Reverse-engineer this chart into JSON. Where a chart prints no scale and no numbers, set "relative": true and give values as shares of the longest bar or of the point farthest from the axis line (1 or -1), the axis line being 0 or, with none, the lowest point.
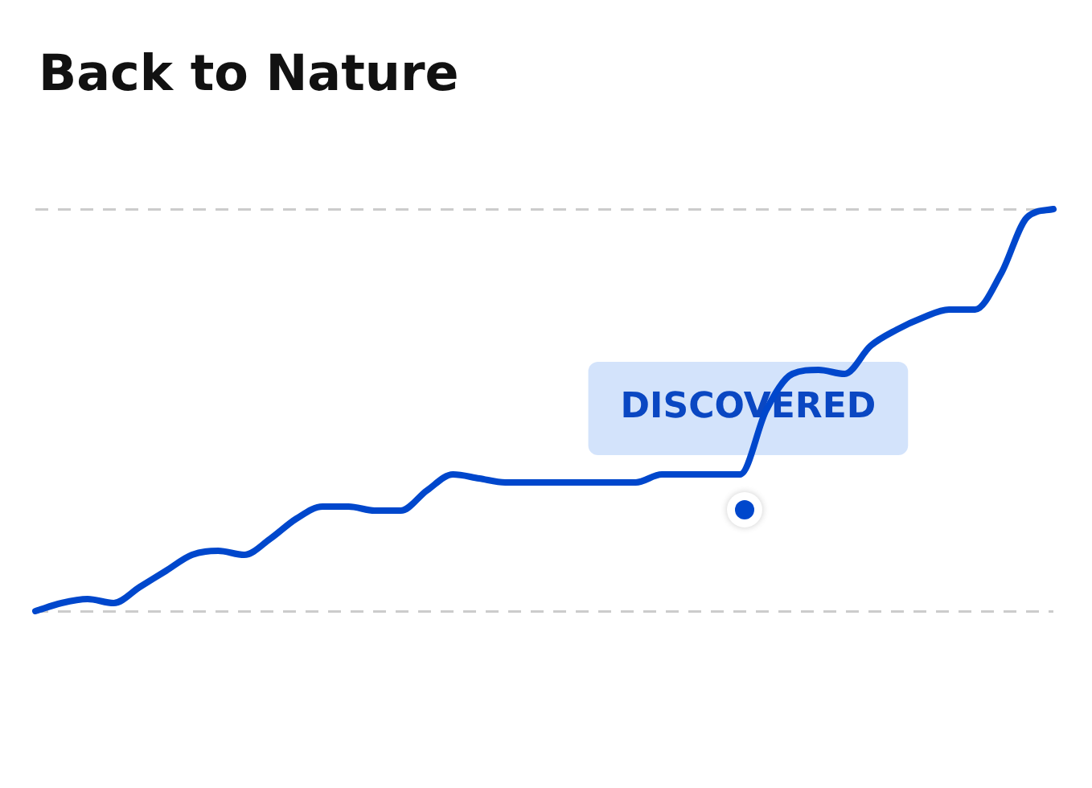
{
  "chart_data": {
    "type": "line",
    "title": "Back to Nature",
    "relative": true,
    "grid": "y",
    "legend": false,
    "marker": "none",
    "line_style": "solid",
    "categories": [
      null,
      null,
      null,
      null,
      null,
      null,
      null,
      null,
      null,
      null,
      null,
      null,
      null,
      null,
      null,
      null,
      null,
      null,
      null,
      null,
      null,
      null,
      null,
      null,
      null,
      null,
      null,
      null,
      null,
      null,
      null,
      null,
      null,
      null,
      null,
      null,
      null,
      null,
      null,
      null
    ],
    "series": [
      {
        "color": "#0047cc",
        "values": [
          0,
          0.02,
          0.03,
          0.02,
          0.06,
          0.1,
          0.14,
          0.15,
          0.14,
          0.18,
          0.23,
          0.26,
          0.26,
          0.25,
          0.25,
          0.3,
          0.34,
          0.33,
          0.32,
          0.32,
          0.32,
          0.32,
          0.32,
          0.32,
          0.34,
          0.34,
          0.34,
          0.34,
          0.5,
          0.59,
          0.6,
          0.59,
          0.66,
          0.7,
          0.73,
          0.75,
          0.75,
          0.84,
          0.98,
          1
        ]
      }
    ],
    "annotations": [
      "DISCOVERED"
    ]
  }
}
